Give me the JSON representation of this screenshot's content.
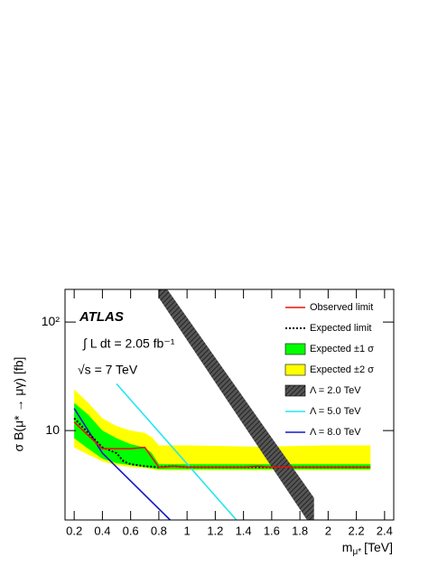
{
  "chart_data": {
    "type": "line",
    "y_label": "σ B(μ* → μγ) [fb]",
    "x_label": {
      "main": "m",
      "sub": "μ*",
      "unit": "[TeV]"
    },
    "annotations": {
      "experiment": "ATLAS",
      "luminosity": "∫ L dt = 2.05 fb⁻¹",
      "energy": "√s = 7 TeV"
    },
    "xlim": [
      0.135,
      2.465
    ],
    "xticks": [
      0.2,
      0.4,
      0.6,
      0.8,
      1,
      1.2,
      1.4,
      1.6,
      1.8,
      2,
      2.2,
      2.4
    ],
    "ylim": [
      1.5,
      200
    ],
    "yscale": "log",
    "yticks": [
      10,
      {
        "value": 100,
        "label": "10²"
      }
    ],
    "legend": "top-right",
    "series": [
      {
        "name": "Observed limit",
        "kind": "line",
        "color": "#e8140c",
        "dash": "solid",
        "x": [
          0.2,
          0.3,
          0.4,
          0.5,
          0.6,
          0.7,
          0.8,
          0.85,
          0.9,
          1.0,
          1.2,
          1.4,
          1.5,
          1.6,
          1.8,
          2.0,
          2.3
        ],
        "values": [
          12,
          9,
          6.8,
          6.8,
          6.8,
          7.0,
          4.6,
          4.6,
          4.7,
          4.6,
          4.6,
          4.6,
          4.7,
          4.6,
          4.6,
          4.6,
          4.6
        ]
      },
      {
        "name": "Expected limit",
        "kind": "line",
        "color": "#000000",
        "dash": "dotted",
        "x": [
          0.2,
          0.3,
          0.4,
          0.5,
          0.55,
          0.6,
          0.7,
          0.8,
          0.9,
          1.0,
          1.2,
          1.4,
          1.6,
          1.8,
          2.0,
          2.3
        ],
        "values": [
          13,
          9.5,
          7,
          6.2,
          5.2,
          4.9,
          4.7,
          4.6,
          4.7,
          4.6,
          4.6,
          4.6,
          4.6,
          4.6,
          4.6,
          4.6
        ]
      },
      {
        "name": "Expected ±1 σ",
        "kind": "band",
        "color": "#00ff00",
        "hatch": false,
        "x": [
          0.2,
          0.3,
          0.4,
          0.5,
          0.6,
          0.7,
          0.75,
          0.8,
          1.0,
          1.5,
          2.0,
          2.3
        ],
        "upper": [
          18,
          14,
          10,
          8.5,
          7.5,
          7,
          6.2,
          4.9,
          4.9,
          4.9,
          4.9,
          4.9
        ],
        "lower": [
          8.5,
          6.8,
          5.5,
          5,
          4.8,
          4.6,
          4.5,
          4.4,
          4.4,
          4.4,
          4.4,
          4.4
        ]
      },
      {
        "name": "Expected ±2 σ",
        "kind": "band",
        "color": "#ffff00",
        "hatch": false,
        "x": [
          0.2,
          0.3,
          0.4,
          0.5,
          0.6,
          0.7,
          0.75,
          0.8,
          1.0,
          1.5,
          2.0,
          2.3
        ],
        "upper": [
          24,
          18,
          13,
          11,
          10,
          9.5,
          8.7,
          7.3,
          7.3,
          7.1,
          7.3,
          7.3
        ],
        "lower": [
          7,
          6,
          5.2,
          4.8,
          4.6,
          4.5,
          4.4,
          4.3,
          4.3,
          4.3,
          4.3,
          4.3
        ]
      },
      {
        "name": "Λ = 2.0 TeV",
        "kind": "band",
        "color": "#444444",
        "hatch": true,
        "x": [
          0.8,
          1.9
        ],
        "upper": [
          258,
          2.4
        ],
        "lower": [
          167,
          1.2
        ]
      },
      {
        "name": "Λ = 5.0 TeV",
        "kind": "line",
        "color": "#22e6f0",
        "dash": "solid",
        "x": [
          0.5,
          1.35
        ],
        "values": [
          27,
          1.5
        ]
      },
      {
        "name": "Λ = 8.0 TeV",
        "kind": "line",
        "color": "#1418c8",
        "dash": "solid",
        "x": [
          0.2,
          0.4,
          0.88
        ],
        "values": [
          16,
          6.2,
          1.5
        ]
      }
    ]
  }
}
